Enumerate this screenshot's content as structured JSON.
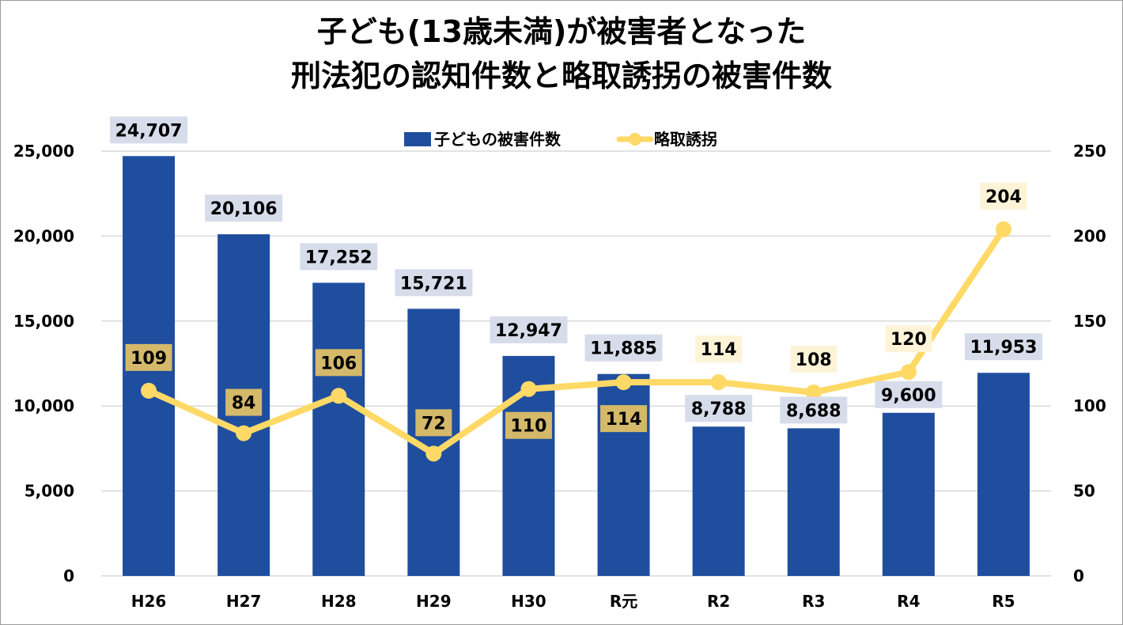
{
  "chart_data": {
    "type": "bar",
    "title_lines": [
      "子ども(13歳未満)が被害者となった",
      "刑法犯の認知件数と略取誘拐の被害件数"
    ],
    "categories": [
      "H26",
      "H27",
      "H28",
      "H29",
      "H30",
      "R元",
      "R2",
      "R3",
      "R4",
      "R5"
    ],
    "series": [
      {
        "name": "子どもの被害件数",
        "kind": "bar",
        "axis": "left",
        "color": "#1f4e9e",
        "values": [
          24707,
          20106,
          17252,
          15721,
          12947,
          11885,
          8788,
          8688,
          9600,
          11953
        ],
        "labels": [
          "24,707",
          "20,106",
          "17,252",
          "15,721",
          "12,947",
          "11,885",
          "8,788",
          "8,688",
          "9,600",
          "11,953"
        ]
      },
      {
        "name": "略取誘拐",
        "kind": "line",
        "axis": "right",
        "color": "#ffd966",
        "values": [
          109,
          84,
          106,
          72,
          110,
          114,
          114,
          108,
          120,
          204
        ],
        "labels": [
          "109",
          "84",
          "106",
          "72",
          "110",
          "114",
          "114",
          "108",
          "120",
          "204"
        ]
      }
    ],
    "y_left": {
      "range": [
        0,
        25000
      ],
      "ticks": [
        "0",
        "5,000",
        "10,000",
        "15,000",
        "20,000",
        "25,000"
      ]
    },
    "y_right": {
      "range": [
        0,
        250
      ],
      "ticks": [
        "0",
        "50",
        "100",
        "150",
        "200",
        "250"
      ]
    },
    "legend_position": "top-center",
    "grid": true,
    "colors": {
      "bar": "#1f4e9e",
      "line": "#ffd966",
      "bar_label_bg": "#d6dcea",
      "line_label_bg_dark": "#d4b96a",
      "line_label_bg_light": "#fdf4d8",
      "grid": "#d9d9d9"
    }
  }
}
